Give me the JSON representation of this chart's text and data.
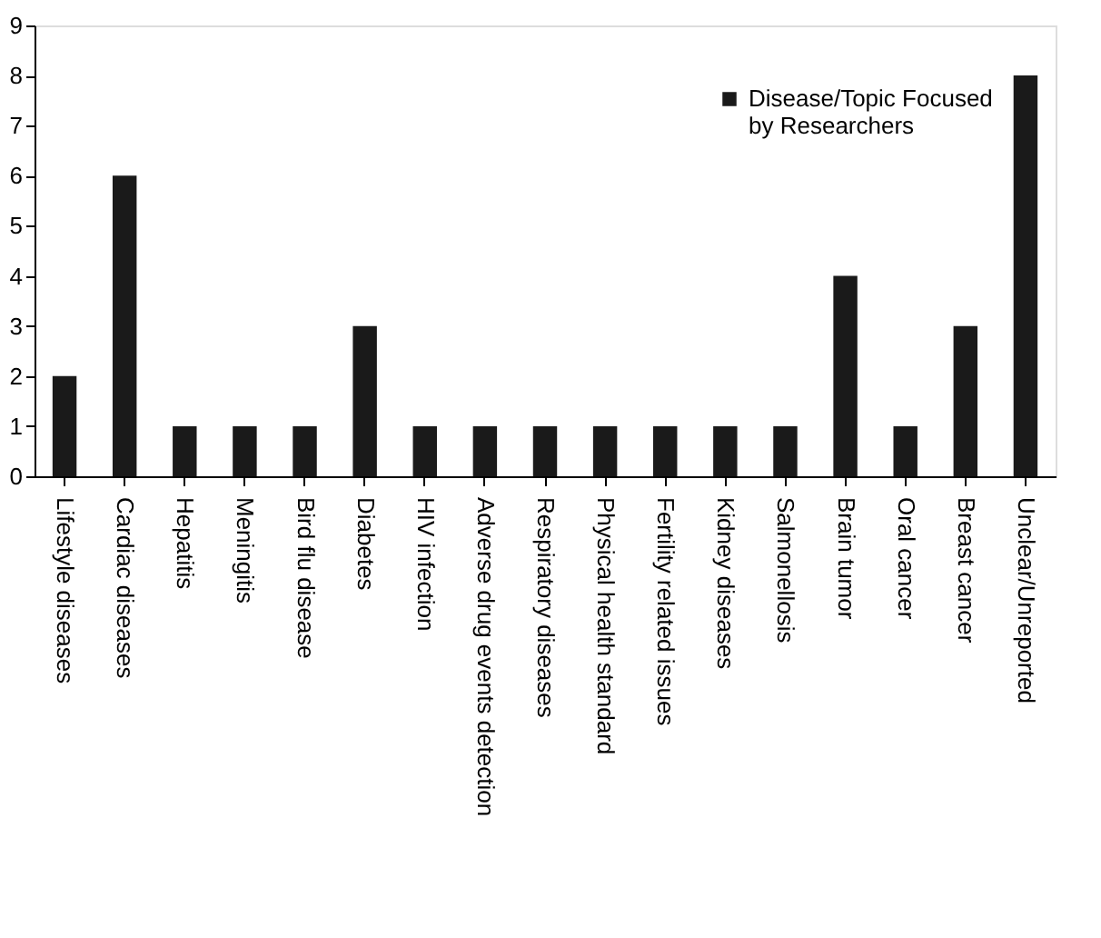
{
  "chart_data": {
    "type": "bar",
    "categories": [
      "Lifestyle diseases",
      "Cardiac diseases",
      "Hepatitis",
      "Meningitis",
      "Bird flu disease",
      "Diabetes",
      "HIV infection",
      "Adverse drug events detection",
      "Respiratory diseases",
      "Physical health standard",
      "Fertility related issues",
      "Kidney diseases",
      "Salmonellosis",
      "Brain tumor",
      "Oral cancer",
      "Breast cancer",
      "Unclear/Unreported"
    ],
    "series": [
      {
        "name": "Disease/Topic Focused by Researchers",
        "color": "#1a1a1a",
        "values": [
          2,
          6,
          1,
          1,
          1,
          3,
          1,
          1,
          1,
          1,
          1,
          1,
          1,
          4,
          1,
          3,
          8
        ]
      }
    ],
    "ylim": [
      0,
      9
    ],
    "yticks": [
      0,
      1,
      2,
      3,
      4,
      5,
      6,
      7,
      8,
      9
    ],
    "grid": false,
    "legend": "top right"
  }
}
